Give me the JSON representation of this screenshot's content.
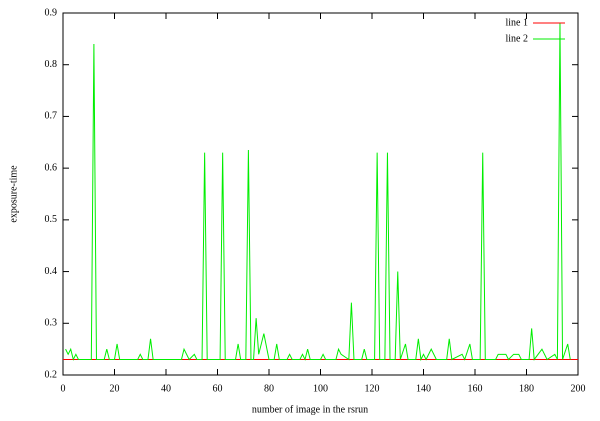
{
  "chart_data": {
    "type": "line",
    "x_label": "number of image in the rsrun",
    "y_label": "exposure-time",
    "xlim": [
      0,
      200
    ],
    "ylim": [
      0.2,
      0.9
    ],
    "xticks": [
      0,
      20,
      40,
      60,
      80,
      100,
      120,
      140,
      160,
      180,
      200
    ],
    "yticks": [
      0.2,
      0.3,
      0.4,
      0.5,
      0.6,
      0.7,
      0.8,
      0.9
    ],
    "legend": "top-right",
    "series": [
      {
        "name": "line 1",
        "color": "#ff0000",
        "x": [
          0,
          200
        ],
        "values": [
          0.23,
          0.23
        ]
      },
      {
        "name": "line 2",
        "color": "#00ee00",
        "x": [
          1,
          2,
          3,
          4,
          5,
          6,
          11,
          12,
          13,
          16,
          17,
          18,
          20,
          21,
          22,
          29,
          30,
          31,
          33,
          34,
          35,
          46,
          47,
          49,
          51,
          52,
          54,
          55,
          56,
          61,
          62,
          63,
          67,
          68,
          69,
          71,
          72,
          73,
          74,
          75,
          76,
          78,
          80,
          82,
          83,
          84,
          87,
          88,
          89,
          92,
          93,
          94,
          95,
          96,
          100,
          101,
          102,
          106,
          107,
          108,
          111,
          112,
          113,
          116,
          117,
          118,
          121,
          122,
          123,
          125,
          126,
          127,
          129,
          130,
          131,
          133,
          134,
          137,
          138,
          139,
          140,
          141,
          143,
          145,
          149,
          150,
          151,
          155,
          156,
          158,
          159,
          162,
          163,
          164,
          168,
          169,
          172,
          173,
          175,
          177,
          178,
          181,
          182,
          183,
          186,
          188,
          191,
          192,
          193,
          194,
          196,
          197
        ],
        "values": [
          0.25,
          0.24,
          0.25,
          0.23,
          0.24,
          0.23,
          0.23,
          0.84,
          0.23,
          0.23,
          0.25,
          0.23,
          0.23,
          0.26,
          0.23,
          0.23,
          0.24,
          0.23,
          0.23,
          0.27,
          0.23,
          0.23,
          0.25,
          0.23,
          0.24,
          0.23,
          0.23,
          0.63,
          0.23,
          0.23,
          0.63,
          0.23,
          0.23,
          0.26,
          0.23,
          0.23,
          0.635,
          0.23,
          0.23,
          0.31,
          0.24,
          0.28,
          0.23,
          0.23,
          0.26,
          0.23,
          0.23,
          0.24,
          0.23,
          0.23,
          0.24,
          0.23,
          0.25,
          0.23,
          0.23,
          0.24,
          0.23,
          0.23,
          0.25,
          0.24,
          0.23,
          0.34,
          0.23,
          0.23,
          0.25,
          0.23,
          0.23,
          0.63,
          0.23,
          0.23,
          0.63,
          0.23,
          0.23,
          0.4,
          0.23,
          0.26,
          0.23,
          0.23,
          0.27,
          0.23,
          0.24,
          0.23,
          0.25,
          0.23,
          0.23,
          0.27,
          0.23,
          0.24,
          0.23,
          0.26,
          0.23,
          0.23,
          0.63,
          0.23,
          0.23,
          0.24,
          0.24,
          0.23,
          0.24,
          0.24,
          0.23,
          0.23,
          0.29,
          0.23,
          0.25,
          0.23,
          0.24,
          0.23,
          0.88,
          0.23,
          0.26,
          0.23
        ]
      }
    ]
  }
}
